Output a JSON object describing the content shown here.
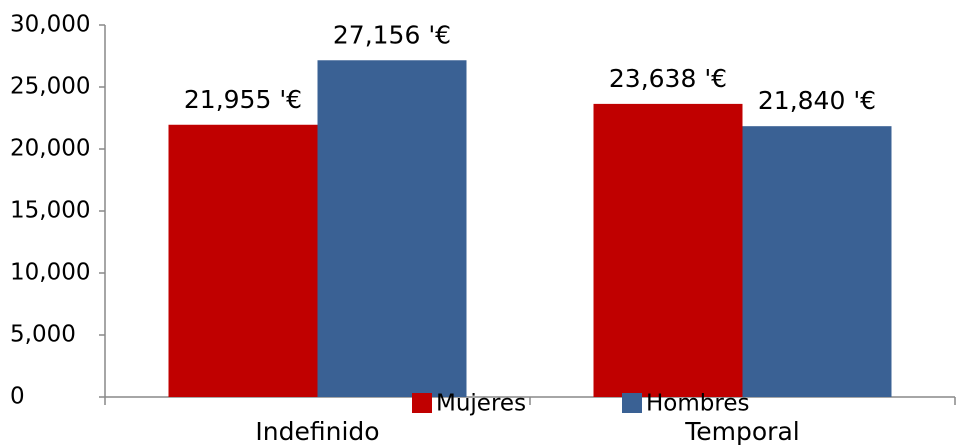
{
  "chart_data": {
    "type": "bar",
    "categories": [
      "Indefinido",
      "Temporal"
    ],
    "series": [
      {
        "name": "Mujeres",
        "color": "#c00000",
        "values": [
          21955,
          23638
        ],
        "value_labels": [
          "21,955 '€",
          "23,638 '€"
        ]
      },
      {
        "name": "Hombres",
        "color": "#3a6194",
        "values": [
          27156,
          21840
        ],
        "value_labels": [
          "27,156 '€",
          "21,840 '€"
        ]
      }
    ],
    "ylim": [
      0,
      30000
    ],
    "yticks": [
      0,
      {
        "value": 5000,
        "label": "5,000"
      },
      {
        "value": 10000,
        "label": "10,000"
      },
      {
        "value": 15000,
        "label": "15,000"
      },
      {
        "value": 20000,
        "label": "20,000"
      },
      {
        "value": 25000,
        "label": "25,000"
      },
      {
        "value": 30000,
        "label": "30,000"
      }
    ],
    "grid": false,
    "legend": "bottom"
  }
}
